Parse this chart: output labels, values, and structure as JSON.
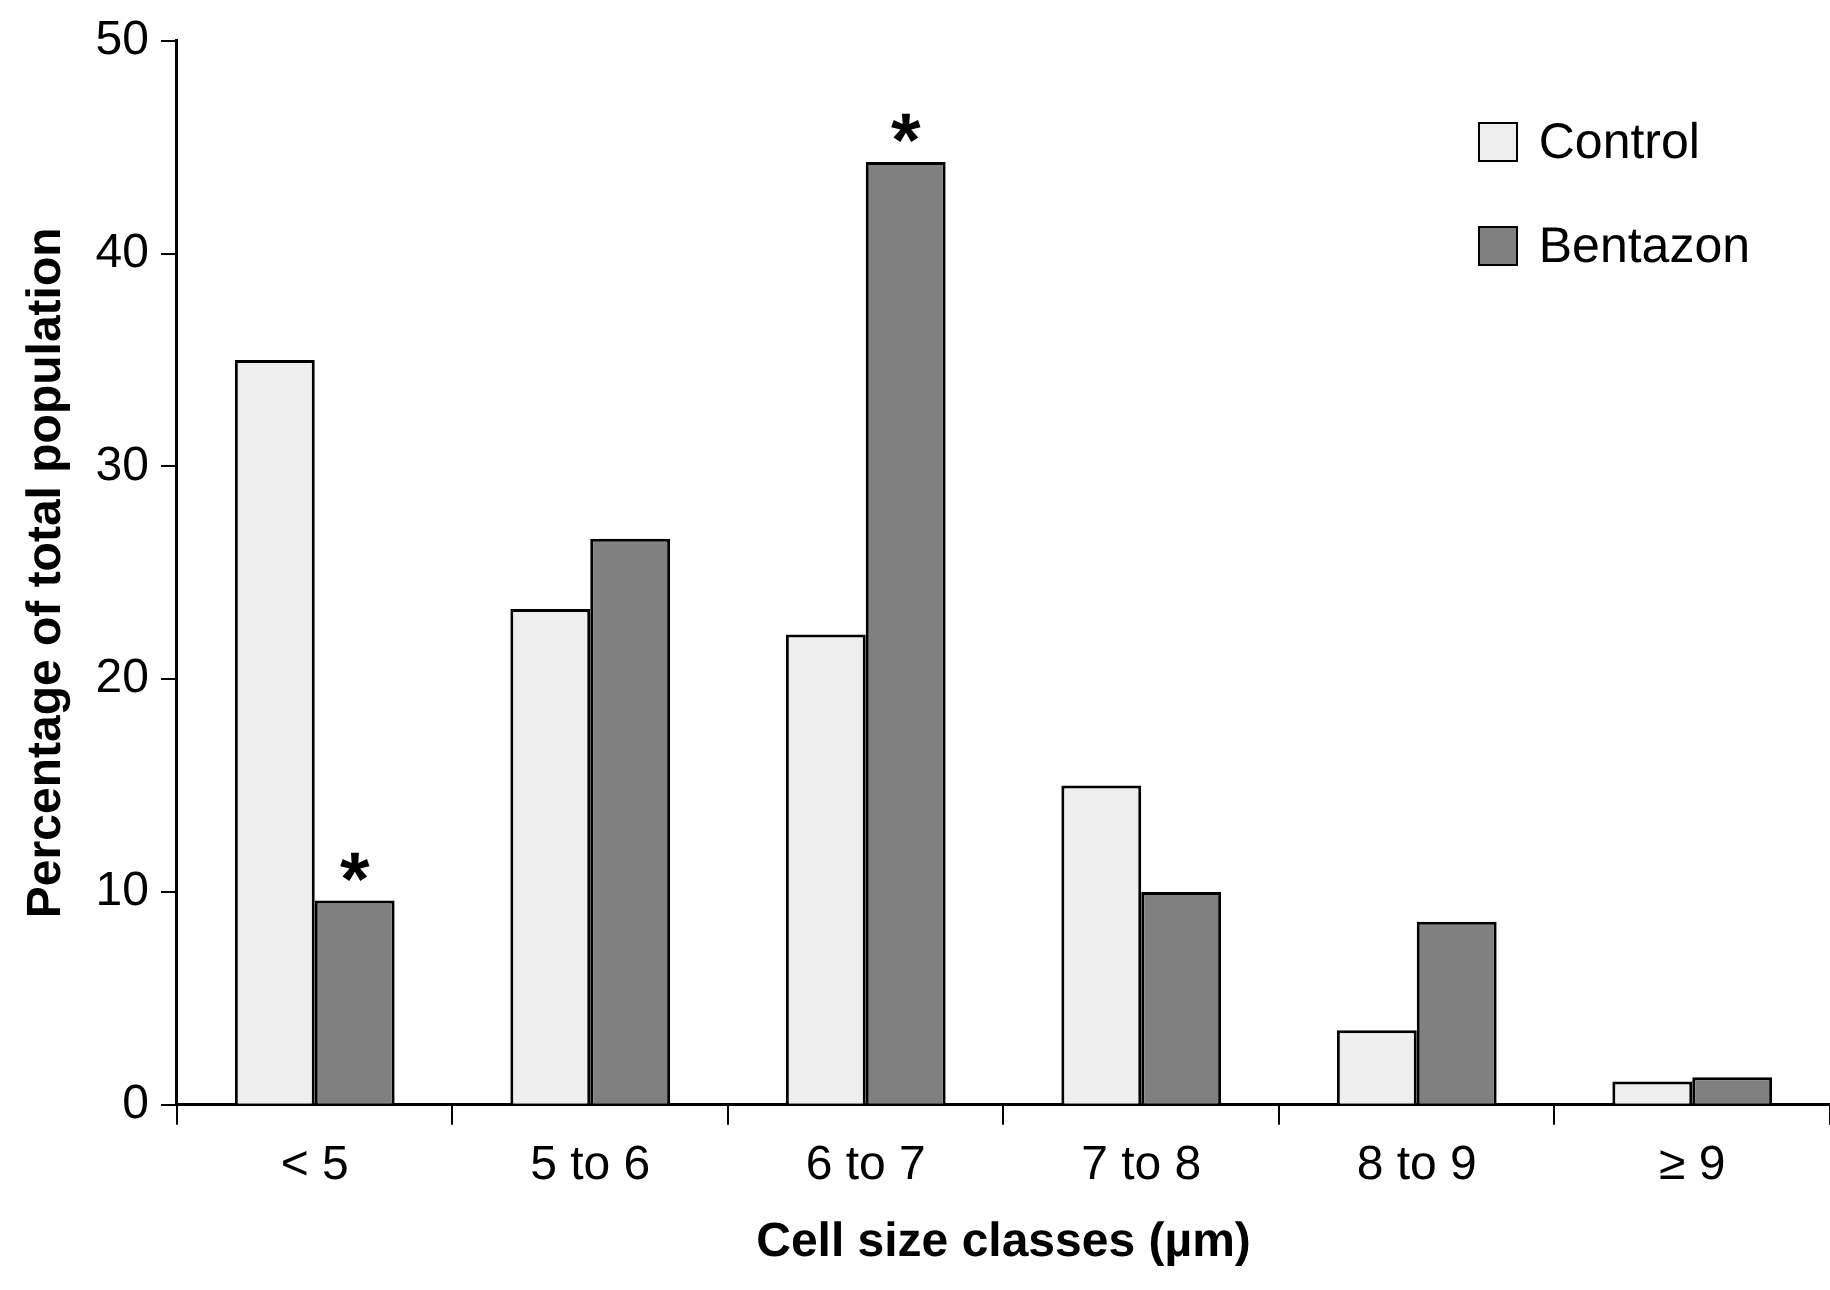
{
  "chart_data": {
    "type": "bar",
    "xlabel": "Cell size classes (µm)",
    "ylabel": "Percentage of total population",
    "categories": [
      "< 5",
      "5 to 6",
      "6 to 7",
      "7 to 8",
      "8 to 9",
      "≥ 9"
    ],
    "series": [
      {
        "name": "Control",
        "color": "#eeeeee",
        "values": [
          35.0,
          23.3,
          22.1,
          15.0,
          3.5,
          1.1
        ]
      },
      {
        "name": "Bentazon",
        "color": "#808080",
        "values": [
          9.6,
          26.6,
          44.3,
          10.0,
          8.6,
          1.3
        ]
      }
    ],
    "ylim": [
      0,
      50
    ],
    "yticks": [
      0,
      10,
      20,
      30,
      40,
      50
    ],
    "grid": false,
    "legend": "top right",
    "annotations": [
      {
        "text": "*",
        "x": "< 5",
        "y": 9.6
      },
      {
        "text": "*",
        "x": "6 to 7",
        "y": 44.3
      }
    ]
  }
}
